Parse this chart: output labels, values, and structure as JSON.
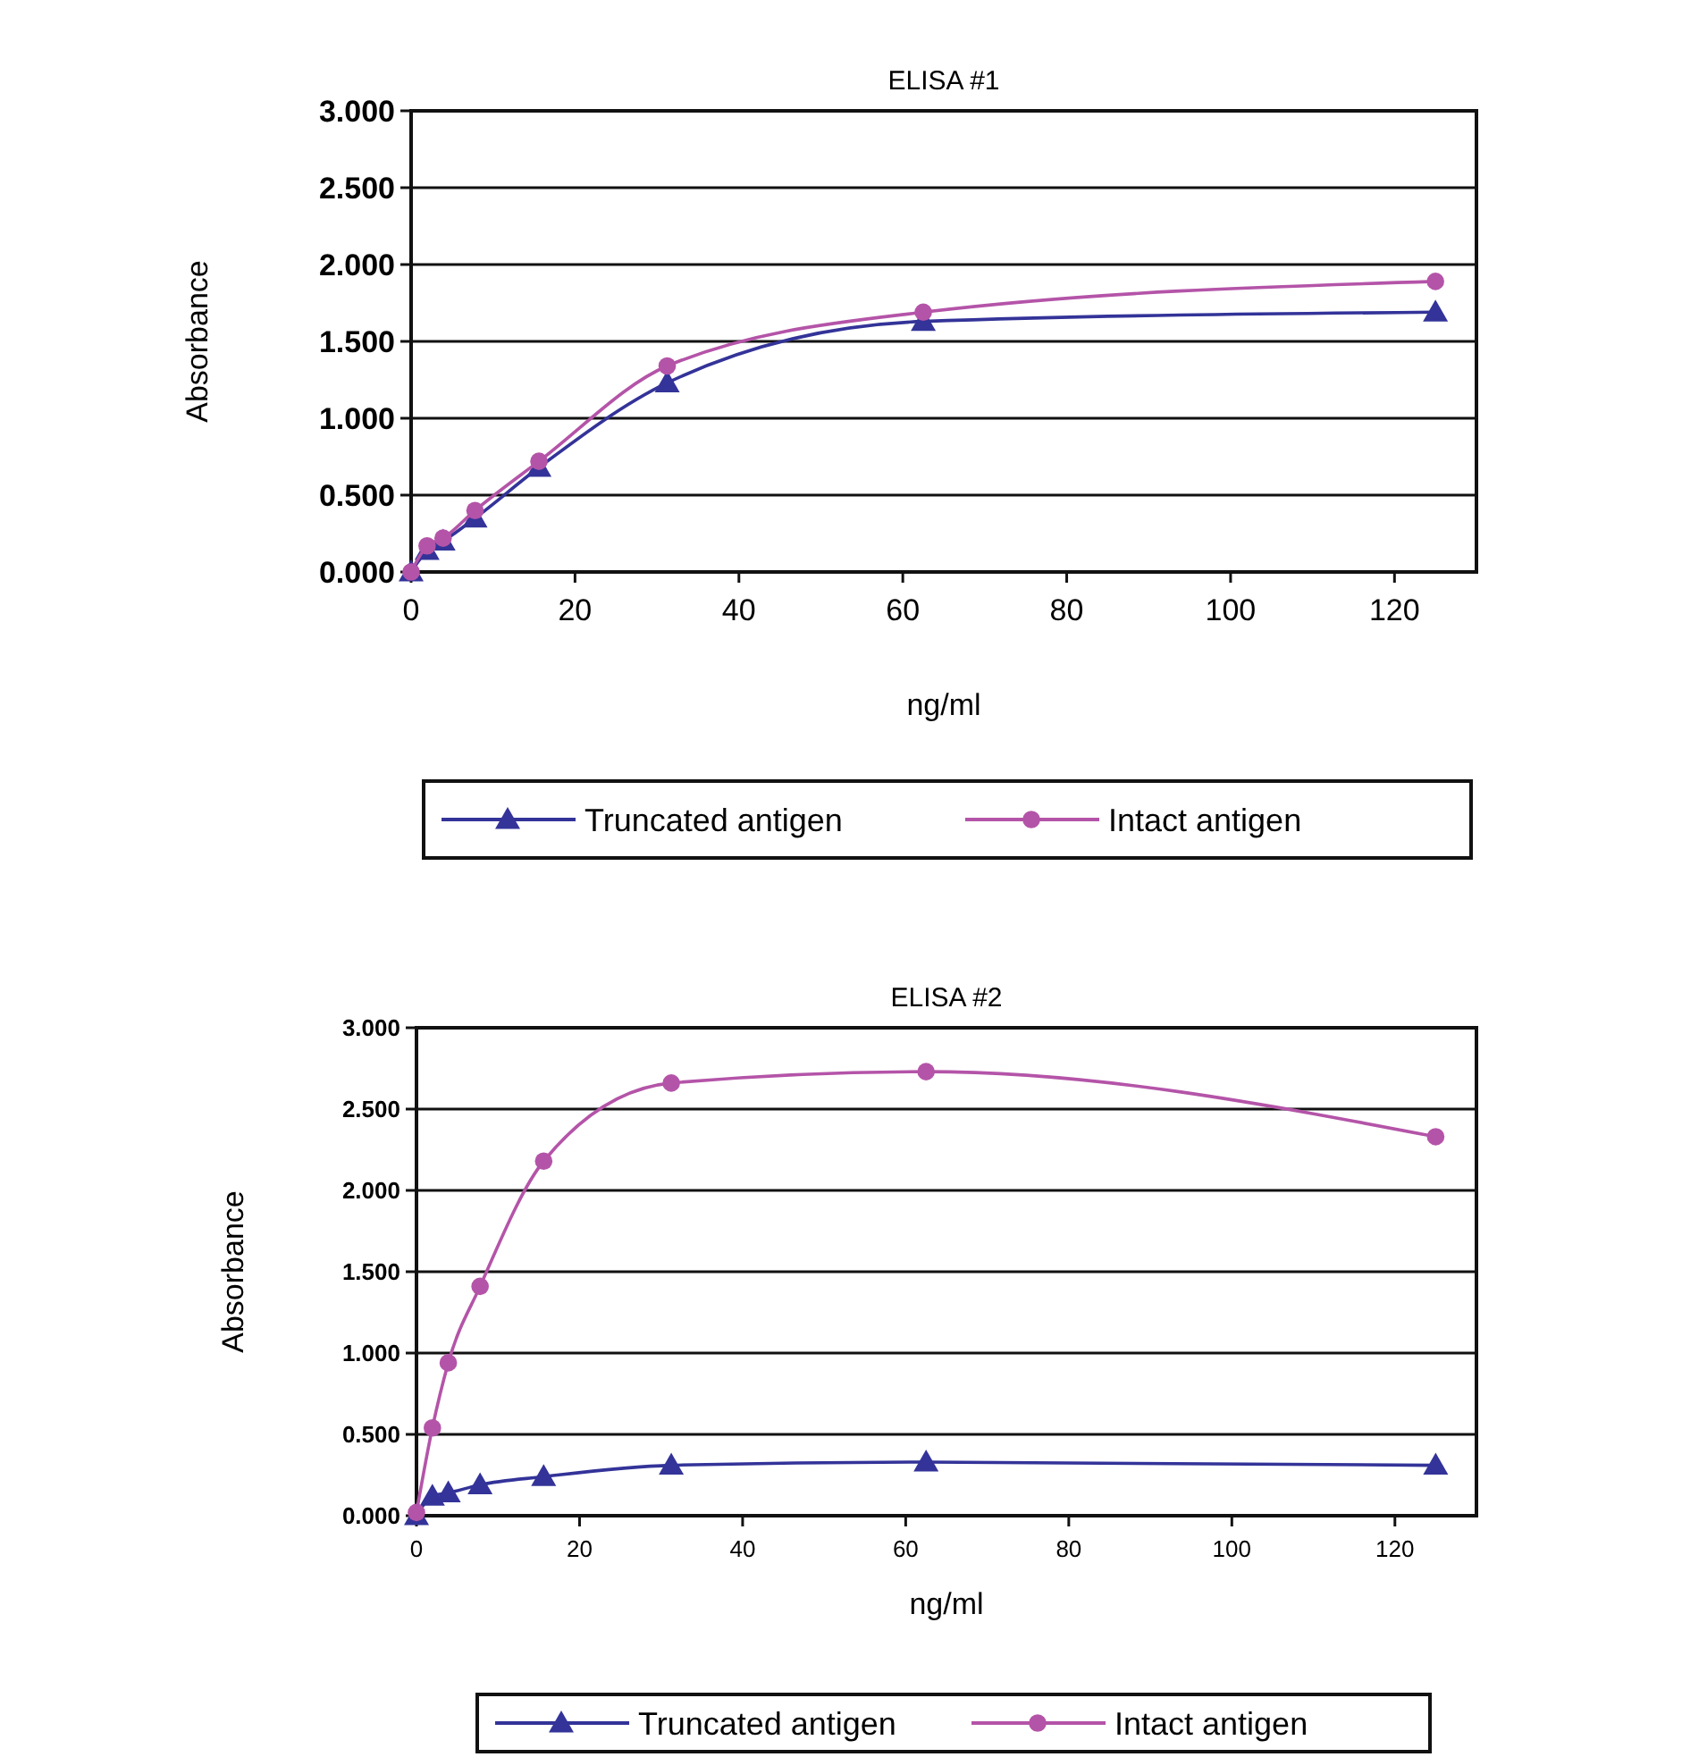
{
  "chart_data": [
    {
      "type": "line",
      "title": "ELISA #1",
      "xlabel": "ng/ml",
      "ylabel": "Absorbance",
      "x": [
        0,
        1.95,
        3.9,
        7.8,
        15.6,
        31.25,
        62.5,
        125
      ],
      "xlim": [
        0,
        130
      ],
      "xticks": [
        0,
        20,
        40,
        60,
        80,
        100,
        120
      ],
      "ylim": [
        0,
        3
      ],
      "yticks": [
        {
          "value": 0,
          "label": "0.000"
        },
        {
          "value": 0.5,
          "label": "0.500"
        },
        {
          "value": 1,
          "label": "1.000"
        },
        {
          "value": 1.5,
          "label": "1.500"
        },
        {
          "value": 2,
          "label": "2.000"
        },
        {
          "value": 2.5,
          "label": "2.500"
        },
        {
          "value": 3,
          "label": "3.000"
        }
      ],
      "grid": "y",
      "legend": "bottom",
      "series": [
        {
          "name": "Truncated antigen",
          "color": "#333399",
          "marker": "triangle",
          "values": [
            0,
            0.14,
            0.2,
            0.35,
            0.68,
            1.23,
            1.63,
            1.69
          ]
        },
        {
          "name": "Intact antigen",
          "color": "#b454a8",
          "marker": "circle",
          "values": [
            0,
            0.17,
            0.22,
            0.4,
            0.72,
            1.34,
            1.69,
            1.89
          ]
        }
      ]
    },
    {
      "type": "line",
      "title": "ELISA #2",
      "xlabel": "ng/ml",
      "ylabel": "Absorbance",
      "x": [
        0,
        1.95,
        3.9,
        7.8,
        15.6,
        31.25,
        62.5,
        125
      ],
      "xlim": [
        0,
        130
      ],
      "xticks": [
        0,
        20,
        40,
        60,
        80,
        100,
        120
      ],
      "ylim": [
        0,
        3
      ],
      "yticks": [
        {
          "value": 0,
          "label": "0.000"
        },
        {
          "value": 0.5,
          "label": "0.500"
        },
        {
          "value": 1,
          "label": "1.000"
        },
        {
          "value": 1.5,
          "label": "1.500"
        },
        {
          "value": 2,
          "label": "2.000"
        },
        {
          "value": 2.5,
          "label": "2.500"
        },
        {
          "value": 3,
          "label": "3.000"
        }
      ],
      "grid": "y",
      "legend": "bottom",
      "series": [
        {
          "name": "Truncated antigen",
          "color": "#333399",
          "marker": "triangle",
          "values": [
            0,
            0.12,
            0.14,
            0.19,
            0.24,
            0.31,
            0.33,
            0.31
          ]
        },
        {
          "name": "Intact antigen",
          "color": "#b454a8",
          "marker": "circle",
          "values": [
            0.02,
            0.54,
            0.94,
            1.41,
            2.18,
            2.66,
            2.73,
            2.33
          ]
        }
      ]
    }
  ]
}
